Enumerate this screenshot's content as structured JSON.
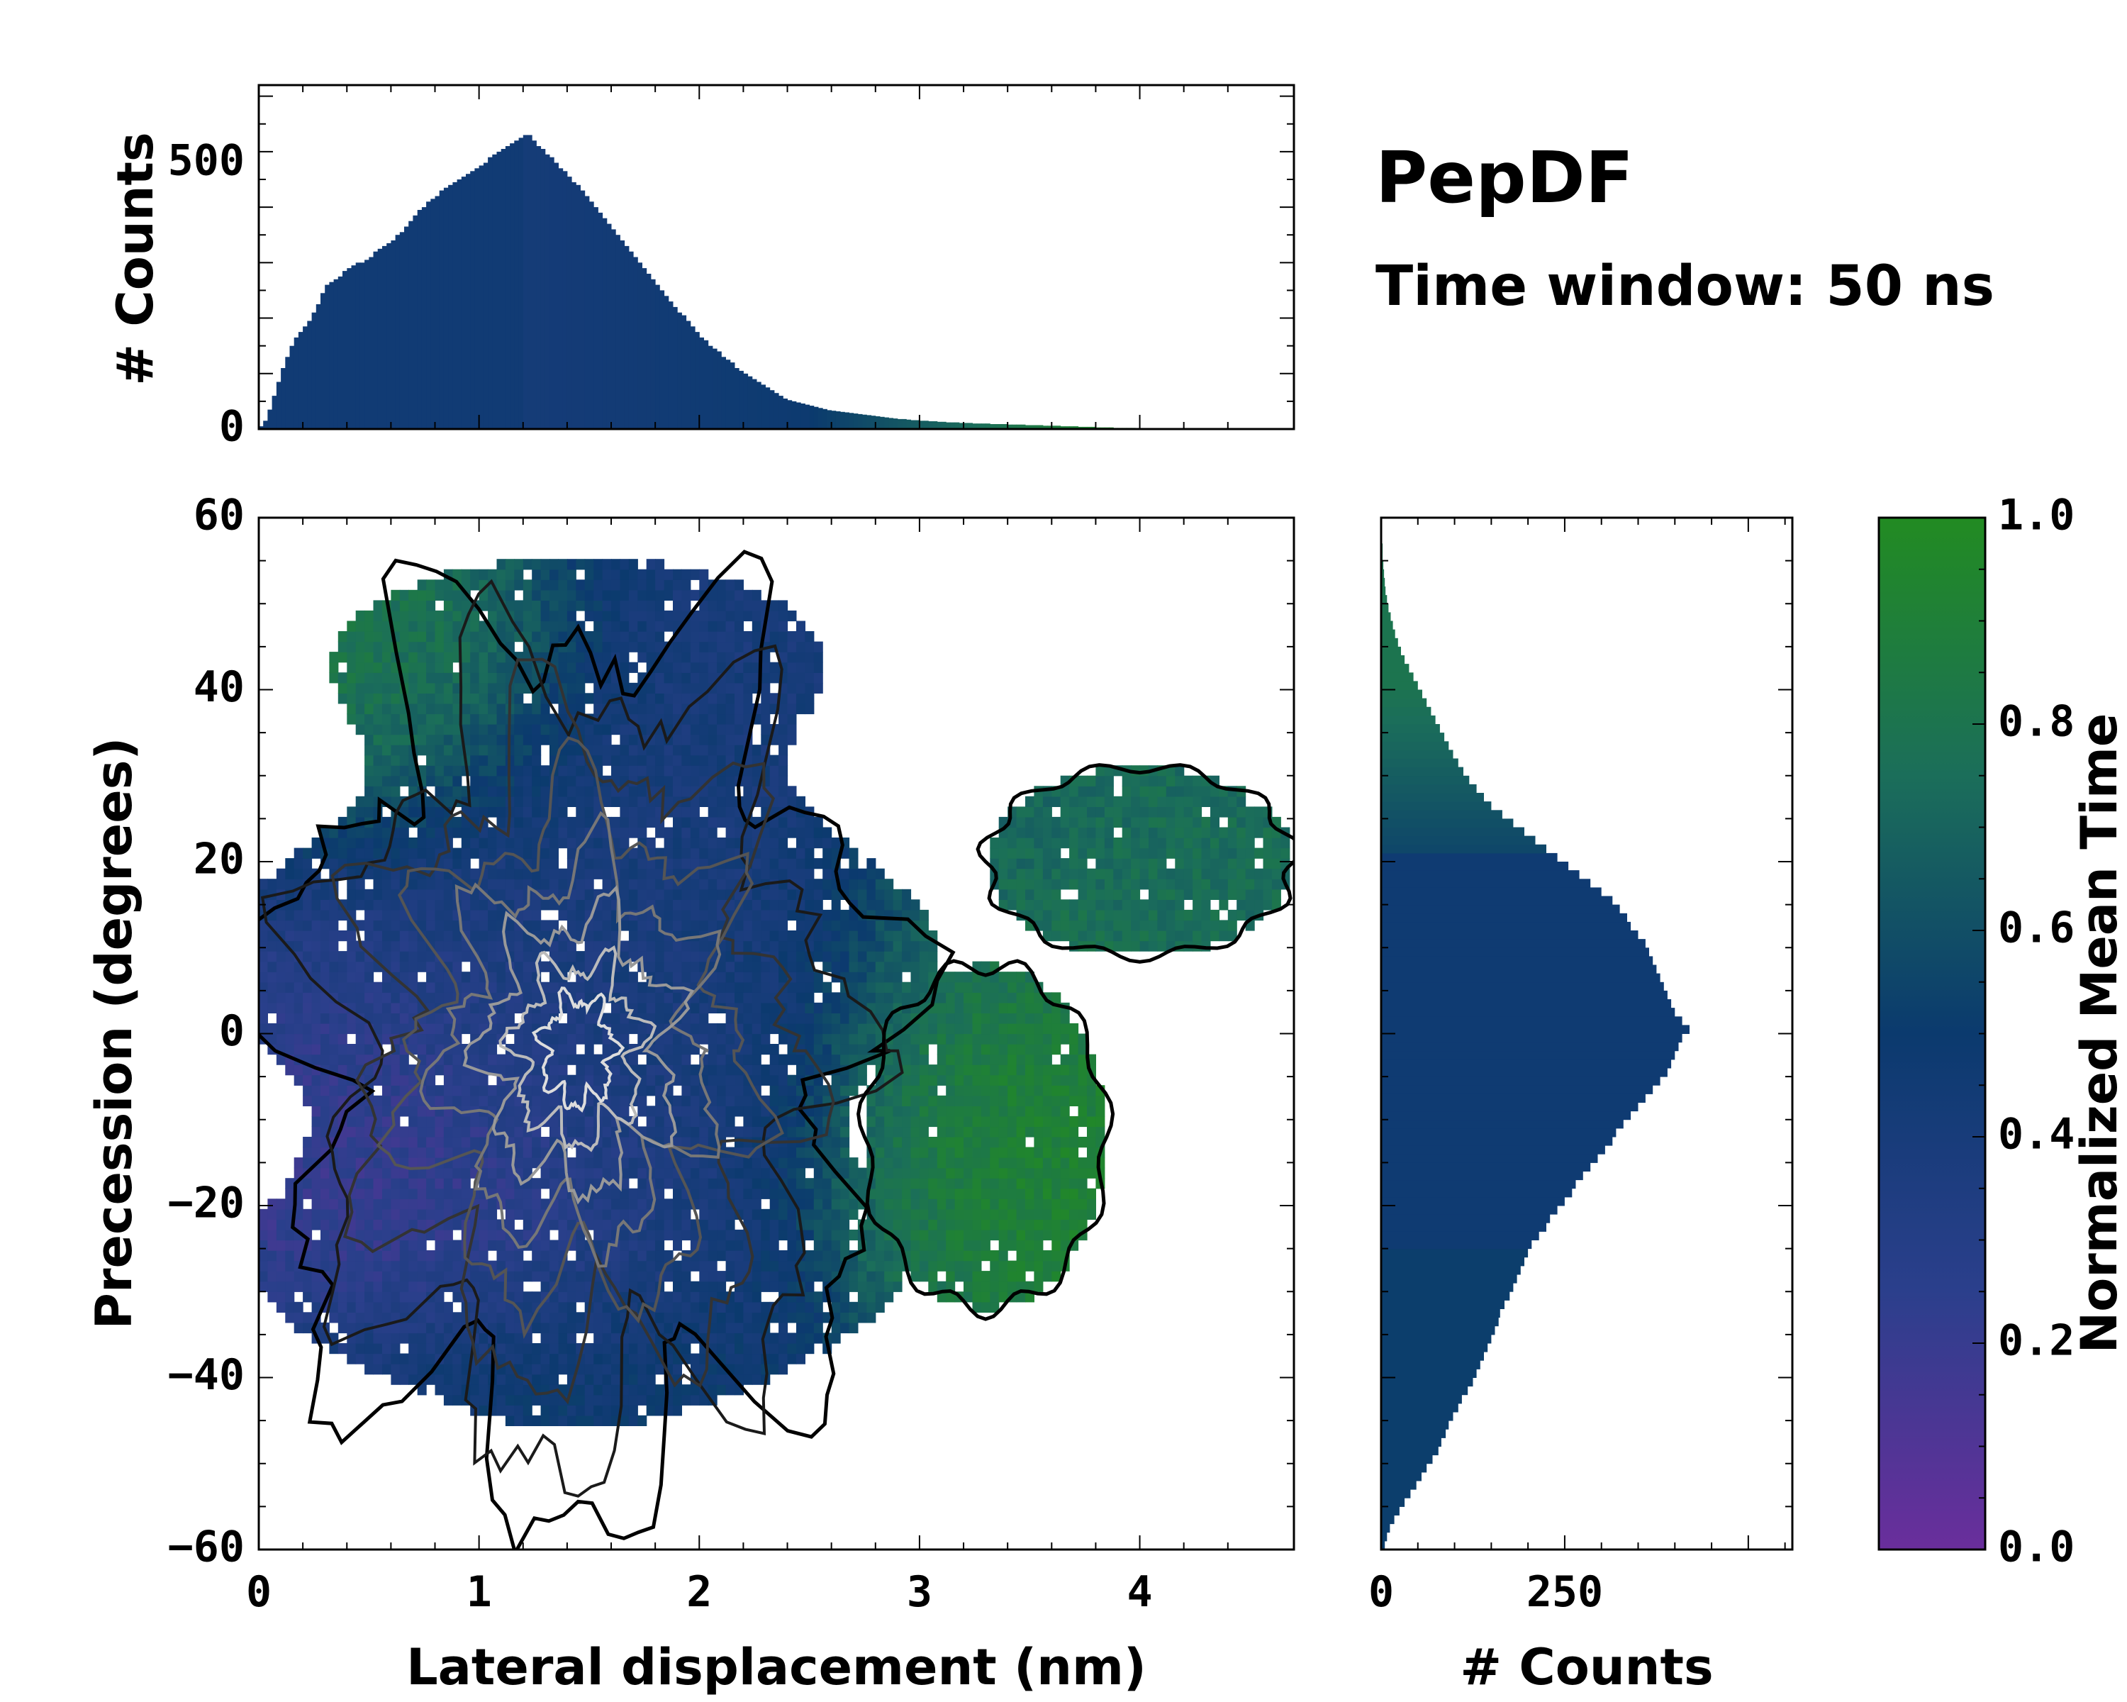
{
  "annotation": {
    "title": "PepDF",
    "subtitle": "Time window: 50 ns"
  },
  "colors": {
    "cmap_0": "#6a2e9c",
    "cmap_025": "#2b3f8c",
    "cmap_05": "#0b3a6e",
    "cmap_075": "#1b6e5a",
    "cmap_1": "#228b22"
  },
  "chart_data": [
    {
      "id": "top_histogram",
      "type": "bar",
      "xlabel": "",
      "ylabel": "# Counts",
      "xlim": [
        0,
        4.7
      ],
      "ylim": [
        0,
        620
      ],
      "y_ticks": [
        0,
        500
      ],
      "bin_start": 0.0,
      "bin_width": 0.02,
      "values": [
        5,
        15,
        35,
        60,
        85,
        110,
        130,
        150,
        165,
        175,
        185,
        195,
        210,
        225,
        245,
        260,
        265,
        270,
        275,
        285,
        290,
        295,
        300,
        300,
        305,
        310,
        320,
        325,
        330,
        335,
        340,
        350,
        355,
        365,
        375,
        385,
        395,
        400,
        410,
        415,
        420,
        430,
        435,
        440,
        445,
        450,
        455,
        460,
        465,
        470,
        475,
        480,
        490,
        495,
        500,
        505,
        510,
        515,
        520,
        525,
        530,
        530,
        520,
        510,
        505,
        495,
        490,
        480,
        470,
        465,
        455,
        445,
        440,
        430,
        420,
        410,
        400,
        390,
        380,
        370,
        360,
        350,
        340,
        330,
        320,
        310,
        300,
        290,
        280,
        270,
        260,
        250,
        240,
        230,
        220,
        210,
        205,
        195,
        185,
        175,
        165,
        160,
        150,
        145,
        140,
        130,
        125,
        120,
        110,
        105,
        100,
        95,
        90,
        85,
        80,
        75,
        70,
        65,
        60,
        55,
        52,
        50,
        48,
        46,
        44,
        42,
        40,
        38,
        36,
        34,
        33,
        32,
        31,
        30,
        29,
        28,
        27,
        26,
        25,
        24,
        23,
        22,
        21,
        20,
        19,
        18,
        18,
        17,
        16,
        16,
        15,
        15,
        14,
        14,
        13,
        13,
        12,
        12,
        12,
        11,
        11,
        11,
        10,
        10,
        10,
        10,
        9,
        9,
        9,
        9,
        8,
        8,
        8,
        8,
        7,
        7,
        7,
        7,
        6,
        6,
        6,
        6,
        5,
        5,
        5,
        5,
        4,
        4,
        4,
        4,
        3,
        3,
        3,
        3,
        2,
        2,
        2,
        2,
        2,
        1,
        1,
        1,
        1,
        1,
        1,
        1,
        1,
        1,
        1,
        1,
        1,
        1,
        1,
        1,
        1,
        1,
        1,
        1,
        1,
        1,
        1,
        1,
        1,
        1,
        1
      ]
    },
    {
      "id": "main_heatmap",
      "type": "heatmap",
      "xlabel": "Lateral displacement (nm)",
      "ylabel": "Precession (degrees)",
      "xlim": [
        0,
        4.7
      ],
      "ylim": [
        -60,
        60
      ],
      "x_ticks": [
        0,
        1,
        2,
        3,
        4
      ],
      "y_ticks": [
        -60,
        -40,
        -20,
        0,
        20,
        40,
        60
      ],
      "y_tick_labels": [
        "−60",
        "−40",
        "−20",
        "0",
        "20",
        "40",
        "60"
      ],
      "regions": [
        {
          "name": "purple core",
          "cx": 0.7,
          "cy": -15,
          "sx": 0.55,
          "sy": 14,
          "value": 0.15
        },
        {
          "name": "blue center",
          "cx": 1.6,
          "cy": 5,
          "sx": 0.9,
          "sy": 25,
          "value": 0.4
        },
        {
          "name": "upper green",
          "cx": 0.5,
          "cy": 42,
          "sx": 0.45,
          "sy": 10,
          "value": 0.85
        },
        {
          "name": "lower blue",
          "cx": 1.2,
          "cy": -45,
          "sx": 0.8,
          "sy": 10,
          "value": 0.5
        },
        {
          "name": "right green",
          "cx": 3.3,
          "cy": -10,
          "sx": 0.45,
          "sy": 14,
          "value": 0.95
        },
        {
          "name": "right teal",
          "cx": 3.9,
          "cy": 20,
          "sx": 0.55,
          "sy": 10,
          "value": 0.75
        }
      ],
      "density_peak": {
        "x": 1.3,
        "y": -5
      }
    },
    {
      "id": "right_histogram",
      "type": "bar",
      "orientation": "horizontal",
      "xlabel": "# Counts",
      "ylabel": "",
      "xlim": [
        0,
        560
      ],
      "ylim": [
        -60,
        60
      ],
      "x_ticks": [
        0,
        250
      ],
      "bin_start": -60,
      "bin_width": 1,
      "values": [
        5,
        8,
        12,
        18,
        25,
        32,
        40,
        48,
        55,
        62,
        70,
        78,
        82,
        88,
        92,
        98,
        105,
        110,
        118,
        125,
        130,
        135,
        140,
        145,
        150,
        155,
        160,
        162,
        168,
        175,
        180,
        185,
        190,
        195,
        200,
        205,
        215,
        225,
        230,
        240,
        250,
        260,
        265,
        275,
        285,
        295,
        305,
        315,
        320,
        330,
        340,
        350,
        360,
        370,
        380,
        390,
        395,
        400,
        405,
        410,
        420,
        410,
        400,
        395,
        390,
        385,
        380,
        375,
        370,
        365,
        360,
        350,
        340,
        335,
        325,
        315,
        300,
        285,
        270,
        255,
        240,
        225,
        210,
        195,
        180,
        165,
        150,
        140,
        130,
        120,
        112,
        105,
        98,
        92,
        86,
        80,
        74,
        68,
        62,
        56,
        50,
        44,
        38,
        32,
        27,
        23,
        19,
        16,
        13,
        10,
        8,
        6,
        5,
        4,
        3,
        2,
        2,
        1,
        1,
        1
      ]
    },
    {
      "id": "colorbar",
      "type": "colorbar",
      "label": "Normalized Mean Time",
      "range": [
        0.0,
        1.0
      ],
      "ticks": [
        "0.0",
        "0.2",
        "0.4",
        "0.6",
        "0.8",
        "1.0"
      ]
    }
  ]
}
